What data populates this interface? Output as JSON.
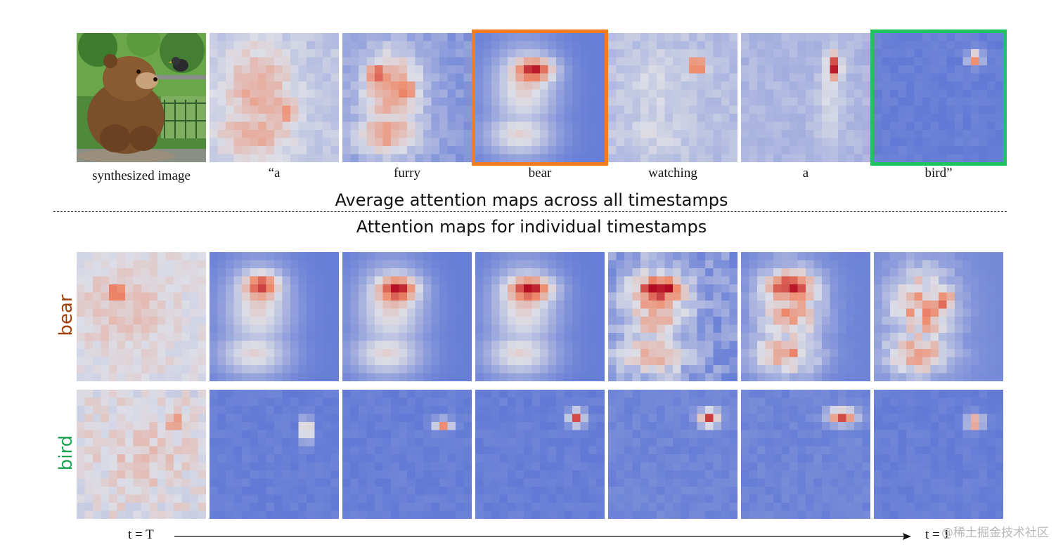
{
  "top_row": {
    "captions": [
      "synthesized image",
      "“a",
      "furry",
      "bear",
      "watching",
      "a",
      "bird”"
    ],
    "highlight_colors": {
      "bear": "#f47b20",
      "bird": "#1fc45e"
    }
  },
  "headings": {
    "average": "Average attention maps across all timestamps",
    "individual": "Attention maps for individual  timestamps"
  },
  "rows": {
    "bear": {
      "label": "bear",
      "color": "#a0410e"
    },
    "bird": {
      "label": "bird",
      "color": "#1aa352"
    }
  },
  "timeline": {
    "start": "t = T",
    "end": "t = 1"
  },
  "watermark": "@稀土掘金技术社区",
  "colors": {
    "low": "#4a66d2",
    "mid": "#dcdde6",
    "high": "#b30b22"
  }
}
